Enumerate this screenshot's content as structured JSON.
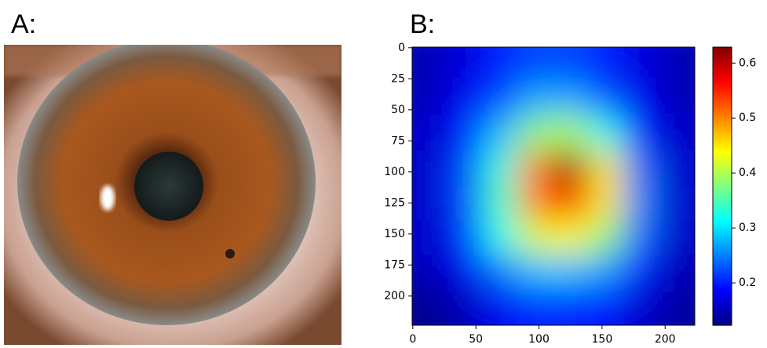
{
  "panels": {
    "a": {
      "label": "A:"
    },
    "b": {
      "label": "B:"
    }
  },
  "chart_data": {
    "type": "heatmap",
    "colormap": "jet",
    "x": [
      14,
      42,
      70,
      98,
      126,
      154,
      182,
      210
    ],
    "y": [
      14,
      42,
      70,
      98,
      126,
      154,
      182,
      210
    ],
    "values": [
      [
        0.15,
        0.17,
        0.2,
        0.22,
        0.22,
        0.2,
        0.17,
        0.15
      ],
      [
        0.15,
        0.18,
        0.22,
        0.27,
        0.27,
        0.23,
        0.18,
        0.15
      ],
      [
        0.16,
        0.2,
        0.28,
        0.38,
        0.4,
        0.32,
        0.2,
        0.16
      ],
      [
        0.16,
        0.22,
        0.33,
        0.5,
        0.62,
        0.45,
        0.24,
        0.16
      ],
      [
        0.16,
        0.22,
        0.34,
        0.5,
        0.55,
        0.45,
        0.25,
        0.16
      ],
      [
        0.16,
        0.21,
        0.32,
        0.42,
        0.44,
        0.38,
        0.24,
        0.16
      ],
      [
        0.15,
        0.18,
        0.24,
        0.28,
        0.28,
        0.26,
        0.2,
        0.15
      ],
      [
        0.13,
        0.15,
        0.18,
        0.2,
        0.2,
        0.19,
        0.16,
        0.14
      ]
    ],
    "xlim": [
      -0.5,
      223.5
    ],
    "ylim": [
      223.5,
      -0.5
    ],
    "xticks": [
      0,
      50,
      100,
      150,
      200
    ],
    "yticks": [
      0,
      25,
      50,
      75,
      100,
      125,
      150,
      175,
      200
    ],
    "clim": [
      0.123,
      0.629
    ],
    "cticks": [
      0.2,
      0.3,
      0.4,
      0.5,
      0.6
    ]
  }
}
